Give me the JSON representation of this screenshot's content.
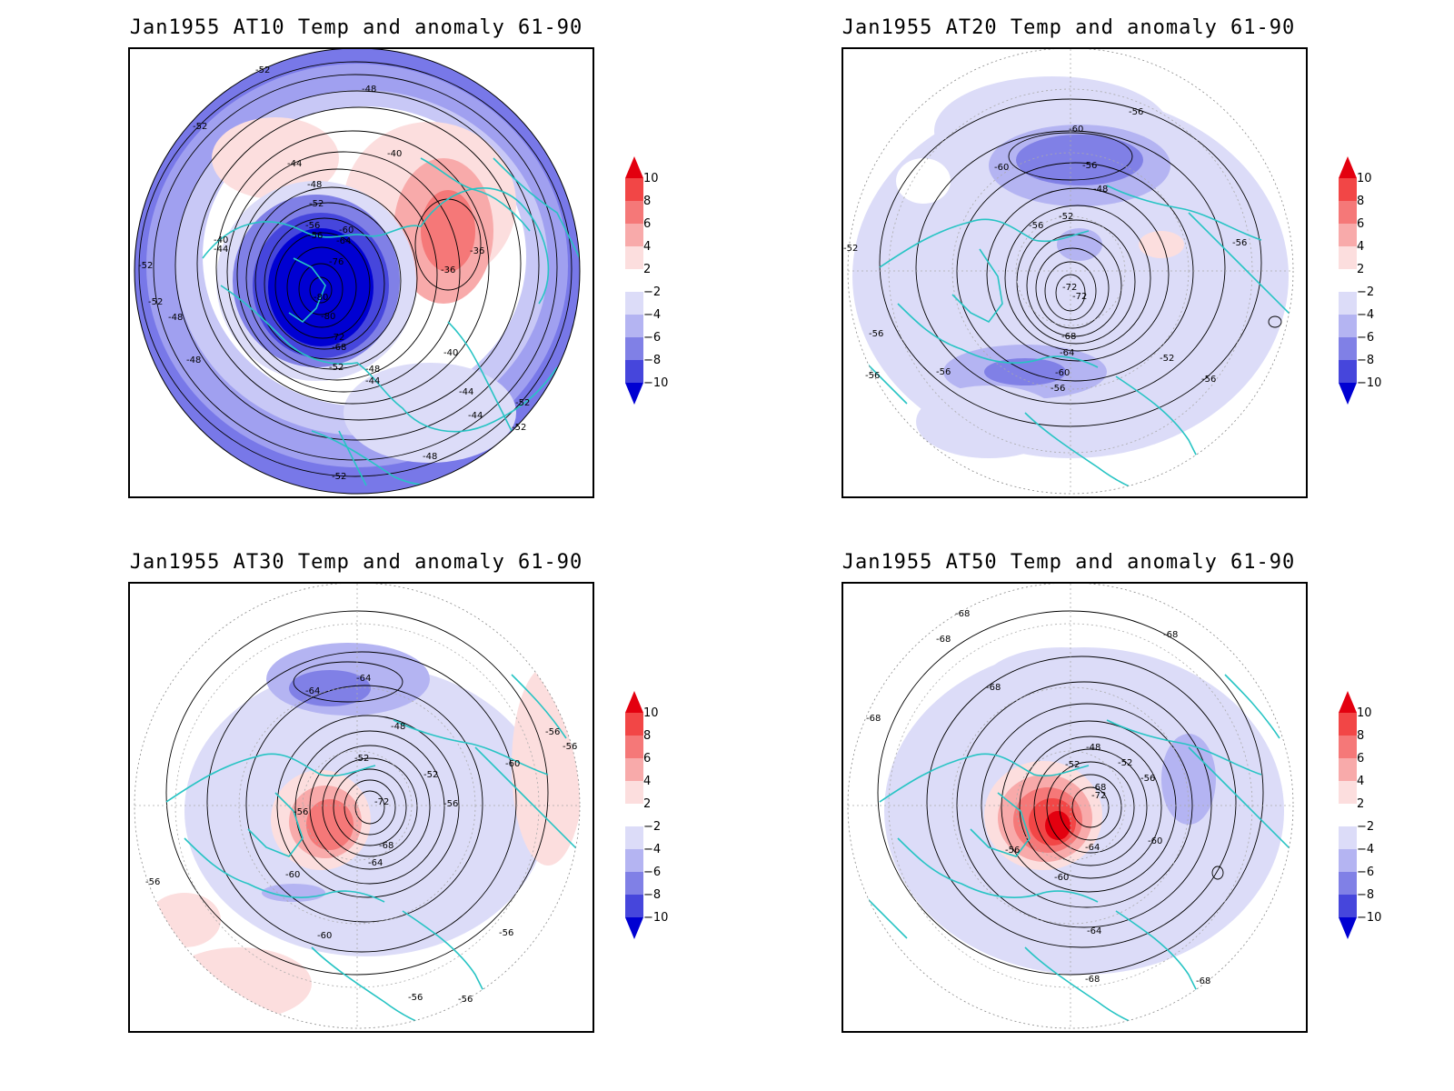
{
  "panels": [
    {
      "id": "at10",
      "title": "Jan1955 AT10 Temp and anomaly 61-90",
      "contour_labels": [
        "-52",
        "-48",
        "-40",
        "-44",
        "-48",
        "-52",
        "-56",
        "-60",
        "-56",
        "-64",
        "-76",
        "-80",
        "-80",
        "-72",
        "-68",
        "-52",
        "-48",
        "-44",
        "-40",
        "-44",
        "-44",
        "-48",
        "-52",
        "-52",
        "-40",
        "-44",
        "-52",
        "-52",
        "-48",
        "-48",
        "-36",
        "-36",
        "-52",
        "-52"
      ]
    },
    {
      "id": "at20",
      "title": "Jan1955 AT20 Temp and anomaly 61-90",
      "contour_labels": [
        "-56",
        "-60",
        "-60",
        "-56",
        "-48",
        "-52",
        "-56",
        "-72",
        "-72",
        "-68",
        "-64",
        "-60",
        "-56",
        "-52",
        "-56",
        "-56",
        "-56",
        "-56",
        "-56",
        "-52"
      ]
    },
    {
      "id": "at30",
      "title": "Jan1955 AT30 Temp and anomaly 61-90",
      "contour_labels": [
        "-64",
        "-64",
        "-48",
        "-52",
        "-52",
        "-56",
        "-56",
        "-72",
        "-68",
        "-64",
        "-60",
        "-60",
        "-60",
        "-56",
        "-56",
        "-56",
        "-56",
        "-56",
        "-56"
      ]
    },
    {
      "id": "at50",
      "title": "Jan1955 AT50 Temp and anomaly 61-90",
      "contour_labels": [
        "-68",
        "-68",
        "-68",
        "-68",
        "-68",
        "-48",
        "-52",
        "-52",
        "-56",
        "-68",
        "-72",
        "-56",
        "-64",
        "-60",
        "-60",
        "-64",
        "-68",
        "-68"
      ]
    }
  ],
  "colorbar": {
    "labels": [
      "10",
      "8",
      "6",
      "4",
      "2",
      "−2",
      "−4",
      "−6",
      "−8",
      "−10"
    ],
    "colors": [
      "#e3000f",
      "#f24646",
      "#f57878",
      "#f8aaaa",
      "#fcdede",
      "#ffffff",
      "#dcdcf8",
      "#b4b4f2",
      "#8080e6",
      "#4646dc",
      "#0000d2"
    ]
  },
  "colors": {
    "coastline": "#27c4c4",
    "contour": "#000000",
    "grid": "#888888"
  }
}
